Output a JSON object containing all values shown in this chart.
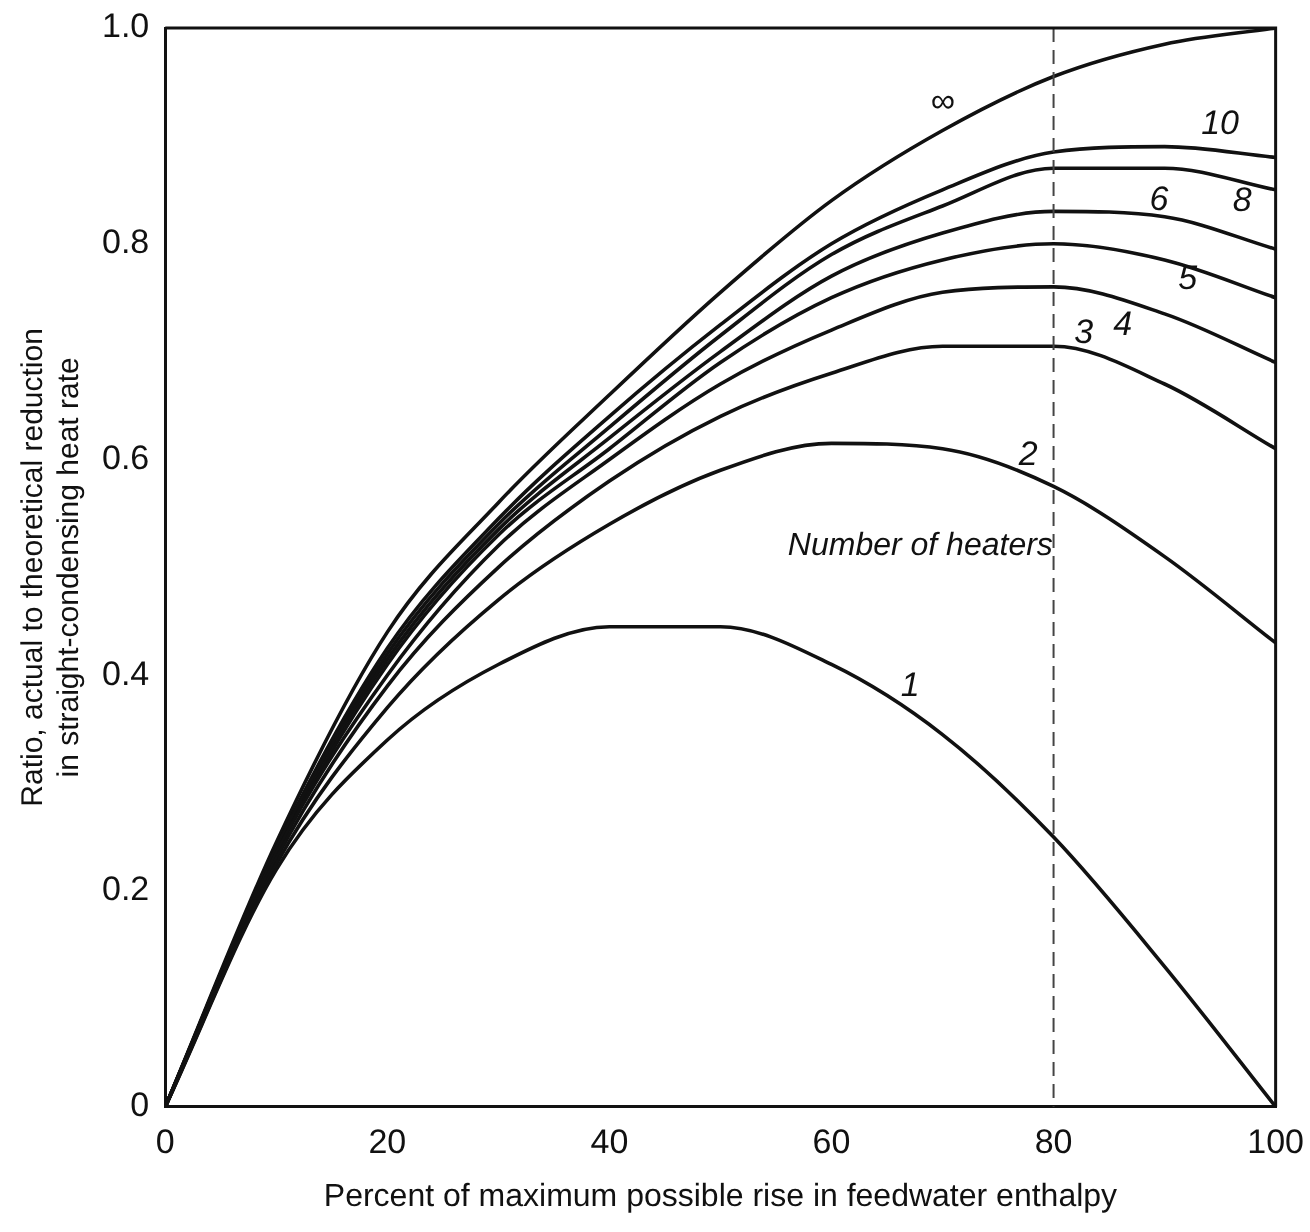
{
  "chart_data": {
    "type": "line",
    "xlabel": "Percent of maximum possible rise in feedwater enthalpy",
    "ylabel": "Ratio, actual to theoretical reduction\nin straight-condensing heat rate",
    "x": [
      0,
      10,
      20,
      30,
      40,
      50,
      60,
      70,
      80,
      90,
      100
    ],
    "xlim": [
      0,
      100
    ],
    "xticks": [
      0,
      20,
      40,
      60,
      80,
      100
    ],
    "ylim": [
      0,
      1.0
    ],
    "yticks": [
      0,
      0.2,
      0.4,
      0.6,
      0.8,
      {
        "value": 1.0,
        "label": "1.0"
      }
    ],
    "grid": false,
    "legend": false,
    "marker": "none",
    "line_style": "solid",
    "series": [
      {
        "name": "1",
        "color": "#111111",
        "values": [
          0,
          0.22,
          0.34,
          0.41,
          0.445,
          0.445,
          0.41,
          0.345,
          0.25,
          0.13,
          0
        ]
      },
      {
        "name": "2",
        "color": "#111111",
        "values": [
          0,
          0.225,
          0.37,
          0.47,
          0.54,
          0.59,
          0.615,
          0.61,
          0.575,
          0.51,
          0.43
        ]
      },
      {
        "name": "3",
        "color": "#111111",
        "values": [
          0,
          0.23,
          0.39,
          0.5,
          0.58,
          0.64,
          0.68,
          0.705,
          0.705,
          0.67,
          0.61
        ]
      },
      {
        "name": "4",
        "color": "#111111",
        "values": [
          0,
          0.235,
          0.4,
          0.52,
          0.6,
          0.67,
          0.72,
          0.755,
          0.76,
          0.735,
          0.69
        ]
      },
      {
        "name": "5",
        "color": "#111111",
        "values": [
          0,
          0.235,
          0.41,
          0.53,
          0.61,
          0.69,
          0.75,
          0.785,
          0.8,
          0.785,
          0.75
        ]
      },
      {
        "name": "6",
        "color": "#111111",
        "values": [
          0,
          0.24,
          0.415,
          0.535,
          0.62,
          0.7,
          0.77,
          0.81,
          0.83,
          0.825,
          0.795
        ]
      },
      {
        "name": "8",
        "color": "#111111",
        "values": [
          0,
          0.24,
          0.42,
          0.54,
          0.63,
          0.715,
          0.79,
          0.835,
          0.87,
          0.87,
          0.85
        ]
      },
      {
        "name": "10",
        "color": "#111111",
        "values": [
          0,
          0.24,
          0.425,
          0.545,
          0.64,
          0.725,
          0.8,
          0.85,
          0.885,
          0.89,
          0.88
        ]
      },
      {
        "name": "∞",
        "color": "#111111",
        "values": [
          0,
          0.245,
          0.44,
          0.56,
          0.66,
          0.755,
          0.84,
          0.905,
          0.955,
          0.985,
          1.0
        ]
      }
    ],
    "ref_lines": [
      {
        "axis": "x",
        "value": 80,
        "line_style": "dashed",
        "color": "#444444"
      }
    ],
    "annotations": [
      "Number of heaters"
    ]
  }
}
